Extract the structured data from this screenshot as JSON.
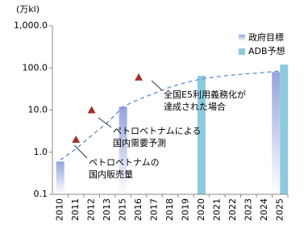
{
  "chart_data": {
    "type": "bar",
    "unit_label": "(万kl)",
    "log_scale": true,
    "grid": false,
    "legend_position": "top-right",
    "categories": [
      "2010",
      "2011",
      "2012",
      "2013",
      "2015",
      "2016",
      "2017",
      "2018",
      "2019",
      "2020",
      "2021",
      "2022",
      "2023",
      "2024",
      "2025"
    ],
    "ylim": [
      0.1,
      1000
    ],
    "yticks": [
      {
        "value": 0.1,
        "label": "0.1"
      },
      {
        "value": 1,
        "label": "1.0"
      },
      {
        "value": 10,
        "label": "10.0"
      },
      {
        "value": 100,
        "label": "100.0"
      },
      {
        "value": 1000,
        "label": "1,000.0"
      }
    ],
    "series": [
      {
        "name": "政府目標",
        "mark": "bar",
        "color": "#95a3dc",
        "values": [
          0.6,
          null,
          null,
          null,
          12,
          null,
          null,
          null,
          null,
          null,
          null,
          null,
          null,
          null,
          80
        ]
      },
      {
        "name": "ADB予想",
        "mark": "bar",
        "color": "#8ccbdf",
        "values": [
          null,
          null,
          null,
          null,
          null,
          null,
          null,
          null,
          null,
          65,
          null,
          null,
          null,
          null,
          120
        ]
      },
      {
        "mark": "triangle",
        "color": "#a0302c",
        "values": [
          null,
          2.0,
          10,
          null,
          null,
          60,
          null,
          null,
          null,
          null,
          null,
          null,
          null,
          null,
          null
        ]
      },
      {
        "mark": "dashed-line",
        "color": "#5b8fd0",
        "values": [
          0.65,
          1.2,
          2.5,
          5,
          12,
          18,
          25,
          35,
          45,
          55,
          62,
          68,
          73,
          78,
          85
        ]
      }
    ],
    "annotations": [
      {
        "lines": [
          "ペトロベトナムの",
          "国内販売量"
        ]
      },
      {
        "lines": [
          "ペトロベトナムによる",
          "国内需要予測"
        ]
      },
      {
        "lines": [
          "全国E5利用義務化が",
          "達成された場合"
        ]
      }
    ]
  }
}
